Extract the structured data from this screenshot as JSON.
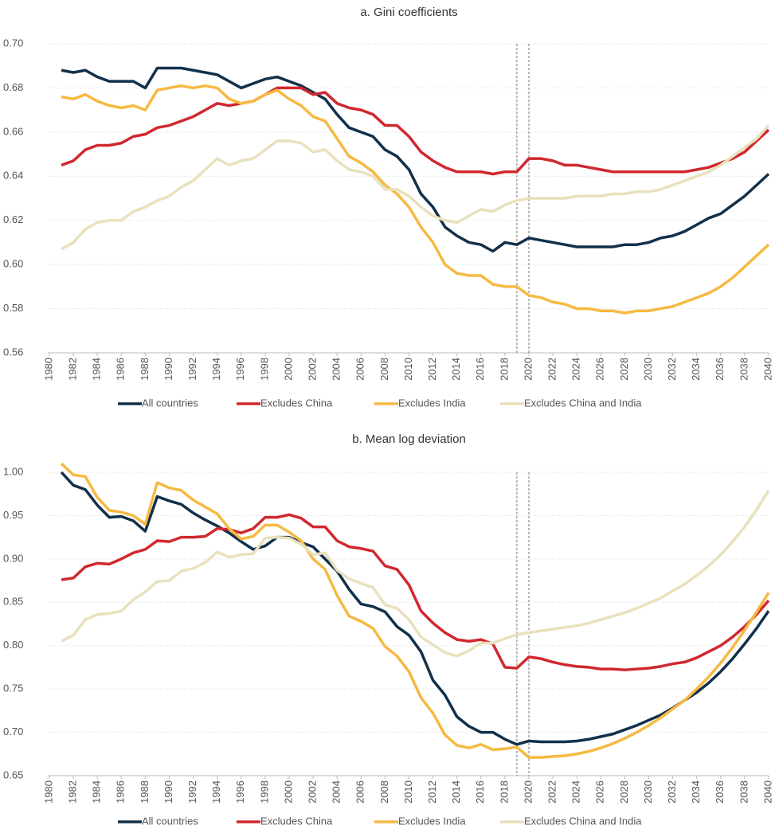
{
  "chart_data": [
    {
      "type": "line",
      "title": "a. Gini coefficients",
      "x": [
        1981,
        1982,
        1983,
        1984,
        1985,
        1986,
        1987,
        1988,
        1989,
        1990,
        1991,
        1992,
        1993,
        1994,
        1995,
        1996,
        1997,
        1998,
        1999,
        2000,
        2001,
        2002,
        2003,
        2004,
        2005,
        2006,
        2007,
        2008,
        2009,
        2010,
        2011,
        2012,
        2013,
        2014,
        2015,
        2016,
        2017,
        2018,
        2019,
        2020,
        2021,
        2022,
        2023,
        2024,
        2025,
        2026,
        2027,
        2028,
        2029,
        2030,
        2031,
        2032,
        2033,
        2034,
        2035,
        2036,
        2037,
        2038,
        2039,
        2040
      ],
      "series": [
        {
          "name": "All countries",
          "color": "#12304a",
          "values": [
            0.688,
            0.687,
            0.688,
            0.685,
            0.683,
            0.683,
            0.683,
            0.68,
            0.689,
            0.689,
            0.689,
            0.688,
            0.687,
            0.686,
            0.683,
            0.68,
            0.682,
            0.684,
            0.685,
            0.683,
            0.681,
            0.678,
            0.675,
            0.668,
            0.662,
            0.66,
            0.658,
            0.652,
            0.649,
            0.643,
            0.632,
            0.626,
            0.617,
            0.613,
            0.61,
            0.609,
            0.606,
            0.61,
            0.609,
            0.612,
            0.611,
            0.61,
            0.609,
            0.608,
            0.608,
            0.608,
            0.608,
            0.609,
            0.609,
            0.61,
            0.612,
            0.613,
            0.615,
            0.618,
            0.621,
            0.623,
            0.627,
            0.631,
            0.636,
            0.641
          ]
        },
        {
          "name": "Excludes China",
          "color": "#d0282e",
          "values": [
            0.645,
            0.647,
            0.652,
            0.654,
            0.654,
            0.655,
            0.658,
            0.659,
            0.662,
            0.663,
            0.665,
            0.667,
            0.67,
            0.673,
            0.672,
            0.673,
            0.674,
            0.677,
            0.68,
            0.68,
            0.68,
            0.677,
            0.678,
            0.673,
            0.671,
            0.67,
            0.668,
            0.663,
            0.663,
            0.658,
            0.651,
            0.647,
            0.644,
            0.642,
            0.642,
            0.642,
            0.641,
            0.642,
            0.642,
            0.648,
            0.648,
            0.647,
            0.645,
            0.645,
            0.644,
            0.643,
            0.642,
            0.642,
            0.642,
            0.642,
            0.642,
            0.642,
            0.642,
            0.643,
            0.644,
            0.646,
            0.648,
            0.651,
            0.656,
            0.661
          ]
        },
        {
          "name": "Excludes India",
          "color": "#f6b942",
          "values": [
            0.676,
            0.675,
            0.677,
            0.674,
            0.672,
            0.671,
            0.672,
            0.67,
            0.679,
            0.68,
            0.681,
            0.68,
            0.681,
            0.68,
            0.675,
            0.673,
            0.674,
            0.677,
            0.679,
            0.675,
            0.672,
            0.667,
            0.665,
            0.657,
            0.649,
            0.646,
            0.642,
            0.636,
            0.632,
            0.626,
            0.617,
            0.61,
            0.6,
            0.596,
            0.595,
            0.595,
            0.591,
            0.59,
            0.59,
            0.586,
            0.585,
            0.583,
            0.582,
            0.58,
            0.58,
            0.579,
            0.579,
            0.578,
            0.579,
            0.579,
            0.58,
            0.581,
            0.583,
            0.585,
            0.587,
            0.59,
            0.594,
            0.599,
            0.604,
            0.609
          ]
        },
        {
          "name": "Excludes China and India",
          "color": "#e9e1bd",
          "values": [
            0.607,
            0.61,
            0.616,
            0.619,
            0.62,
            0.62,
            0.624,
            0.626,
            0.629,
            0.631,
            0.635,
            0.638,
            0.643,
            0.648,
            0.645,
            0.647,
            0.648,
            0.652,
            0.656,
            0.656,
            0.655,
            0.651,
            0.652,
            0.647,
            0.643,
            0.642,
            0.64,
            0.634,
            0.634,
            0.631,
            0.626,
            0.622,
            0.62,
            0.619,
            0.622,
            0.625,
            0.624,
            0.627,
            0.629,
            0.63,
            0.63,
            0.63,
            0.63,
            0.631,
            0.631,
            0.631,
            0.632,
            0.632,
            0.633,
            0.633,
            0.634,
            0.636,
            0.638,
            0.64,
            0.642,
            0.645,
            0.649,
            0.653,
            0.657,
            0.663
          ]
        }
      ],
      "xlim": [
        1980,
        2040
      ],
      "xticks": [
        1980,
        1982,
        1984,
        1986,
        1988,
        1990,
        1992,
        1994,
        1996,
        1998,
        2000,
        2002,
        2004,
        2006,
        2008,
        2010,
        2012,
        2014,
        2016,
        2018,
        2020,
        2022,
        2024,
        2026,
        2028,
        2030,
        2032,
        2034,
        2036,
        2038,
        2040
      ],
      "ylim": [
        0.56,
        0.7
      ],
      "yticks": [
        0.56,
        0.58,
        {
          "value": 0.6,
          "label": "0.60"
        },
        0.62,
        0.64,
        0.66,
        0.68,
        {
          "value": 0.7,
          "label": "0.70"
        }
      ],
      "grid": true,
      "vlines": [
        2019,
        2020
      ],
      "legend": "bottom"
    },
    {
      "type": "line",
      "title": "b. Mean log deviation",
      "x": [
        1981,
        1982,
        1983,
        1984,
        1985,
        1986,
        1987,
        1988,
        1989,
        1990,
        1991,
        1992,
        1993,
        1994,
        1995,
        1996,
        1997,
        1998,
        1999,
        2000,
        2001,
        2002,
        2003,
        2004,
        2005,
        2006,
        2007,
        2008,
        2009,
        2010,
        2011,
        2012,
        2013,
        2014,
        2015,
        2016,
        2017,
        2018,
        2019,
        2020,
        2021,
        2022,
        2023,
        2024,
        2025,
        2026,
        2027,
        2028,
        2029,
        2030,
        2031,
        2032,
        2033,
        2034,
        2035,
        2036,
        2037,
        2038,
        2039,
        2040
      ],
      "series": [
        {
          "name": "All countries",
          "color": "#12304a",
          "values": [
            1.0,
            0.985,
            0.98,
            0.962,
            0.948,
            0.949,
            0.944,
            0.932,
            0.972,
            0.967,
            0.963,
            0.953,
            0.945,
            0.938,
            0.93,
            0.92,
            0.911,
            0.915,
            0.925,
            0.925,
            0.919,
            0.914,
            0.9,
            0.886,
            0.865,
            0.848,
            0.845,
            0.839,
            0.822,
            0.812,
            0.793,
            0.76,
            0.743,
            0.718,
            0.707,
            0.7,
            0.7,
            0.692,
            0.686,
            0.69,
            0.689,
            0.689,
            0.689,
            0.69,
            0.692,
            0.695,
            0.698,
            0.703,
            0.708,
            0.714,
            0.72,
            0.728,
            0.737,
            0.746,
            0.757,
            0.77,
            0.785,
            0.802,
            0.82,
            0.84
          ]
        },
        {
          "name": "Excludes China",
          "color": "#d0282e",
          "values": [
            0.876,
            0.878,
            0.891,
            0.895,
            0.894,
            0.9,
            0.907,
            0.911,
            0.921,
            0.92,
            0.925,
            0.925,
            0.926,
            0.935,
            0.934,
            0.93,
            0.935,
            0.948,
            0.948,
            0.951,
            0.947,
            0.937,
            0.937,
            0.921,
            0.914,
            0.912,
            0.909,
            0.892,
            0.888,
            0.87,
            0.84,
            0.826,
            0.815,
            0.807,
            0.805,
            0.807,
            0.802,
            0.775,
            0.774,
            0.787,
            0.785,
            0.781,
            0.778,
            0.776,
            0.775,
            0.773,
            0.773,
            0.772,
            0.773,
            0.774,
            0.776,
            0.779,
            0.781,
            0.786,
            0.793,
            0.8,
            0.81,
            0.822,
            0.836,
            0.852
          ]
        },
        {
          "name": "Excludes India",
          "color": "#f6b942",
          "values": [
            1.01,
            0.997,
            0.995,
            0.971,
            0.956,
            0.954,
            0.95,
            0.94,
            0.988,
            0.982,
            0.979,
            0.968,
            0.96,
            0.952,
            0.935,
            0.923,
            0.926,
            0.939,
            0.939,
            0.931,
            0.921,
            0.9,
            0.888,
            0.858,
            0.834,
            0.828,
            0.82,
            0.799,
            0.788,
            0.77,
            0.74,
            0.722,
            0.697,
            0.685,
            0.682,
            0.686,
            0.68,
            0.681,
            0.683,
            0.671,
            0.671,
            0.672,
            0.673,
            0.675,
            0.678,
            0.682,
            0.687,
            0.693,
            0.7,
            0.708,
            0.717,
            0.727,
            0.737,
            0.75,
            0.764,
            0.78,
            0.798,
            0.818,
            0.839,
            0.861
          ]
        },
        {
          "name": "Excludes China and India",
          "color": "#e9e1bd",
          "values": [
            0.805,
            0.812,
            0.83,
            0.836,
            0.837,
            0.84,
            0.853,
            0.862,
            0.874,
            0.875,
            0.886,
            0.889,
            0.896,
            0.908,
            0.902,
            0.905,
            0.906,
            0.924,
            0.925,
            0.924,
            0.917,
            0.905,
            0.907,
            0.887,
            0.877,
            0.872,
            0.867,
            0.847,
            0.843,
            0.83,
            0.81,
            0.801,
            0.792,
            0.788,
            0.794,
            0.803,
            0.803,
            0.808,
            0.813,
            0.815,
            0.817,
            0.819,
            0.821,
            0.823,
            0.826,
            0.83,
            0.834,
            0.838,
            0.843,
            0.849,
            0.855,
            0.863,
            0.871,
            0.881,
            0.892,
            0.905,
            0.92,
            0.937,
            0.957,
            0.979
          ]
        }
      ],
      "xlim": [
        1980,
        2040
      ],
      "xticks": [
        1980,
        1982,
        1984,
        1986,
        1988,
        1990,
        1992,
        1994,
        1996,
        1998,
        2000,
        2002,
        2004,
        2006,
        2008,
        2010,
        2012,
        2014,
        2016,
        2018,
        2020,
        2022,
        2024,
        2026,
        2028,
        2030,
        2032,
        2034,
        2036,
        2038,
        2040
      ],
      "ylim": [
        0.65,
        1.0
      ],
      "yticks": [
        0.65,
        {
          "value": 0.7,
          "label": "0.70"
        },
        0.75,
        {
          "value": 0.8,
          "label": "0.80"
        },
        0.85,
        {
          "value": 0.9,
          "label": "0.90"
        },
        0.95,
        {
          "value": 1,
          "label": "1.00"
        }
      ],
      "grid": true,
      "vlines": [
        2019,
        2020
      ],
      "legend": "bottom"
    }
  ]
}
